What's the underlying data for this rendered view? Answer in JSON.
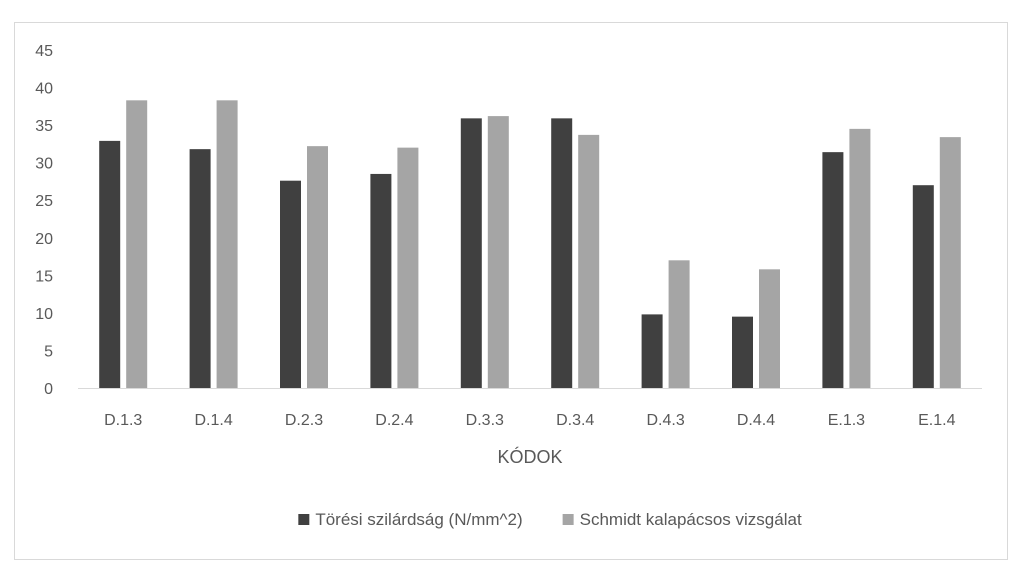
{
  "chart_data": {
    "type": "bar",
    "title": "",
    "xlabel": "KÓDOK",
    "ylabel": "",
    "ylim": [
      0,
      45
    ],
    "yticks": [
      0,
      5,
      10,
      15,
      20,
      25,
      30,
      35,
      40,
      45
    ],
    "grid": false,
    "legend_position": "bottom",
    "categories": [
      "D.1.3",
      "D.1.4",
      "D.2.3",
      "D.2.4",
      "D.3.3",
      "D.3.4",
      "D.4.3",
      "D.4.4",
      "E.1.3",
      "E.1.4"
    ],
    "series": [
      {
        "name": "Törési szilárdság (N/mm^2)",
        "color": "#404040",
        "values": [
          32.9,
          31.8,
          27.6,
          28.5,
          35.9,
          35.9,
          9.8,
          9.5,
          31.4,
          27.0
        ]
      },
      {
        "name": "Schmidt kalapácsos vizsgálat",
        "color": "#a5a5a5",
        "values": [
          38.3,
          38.3,
          32.2,
          32.0,
          36.2,
          33.7,
          17.0,
          15.8,
          34.5,
          33.4
        ]
      }
    ]
  }
}
